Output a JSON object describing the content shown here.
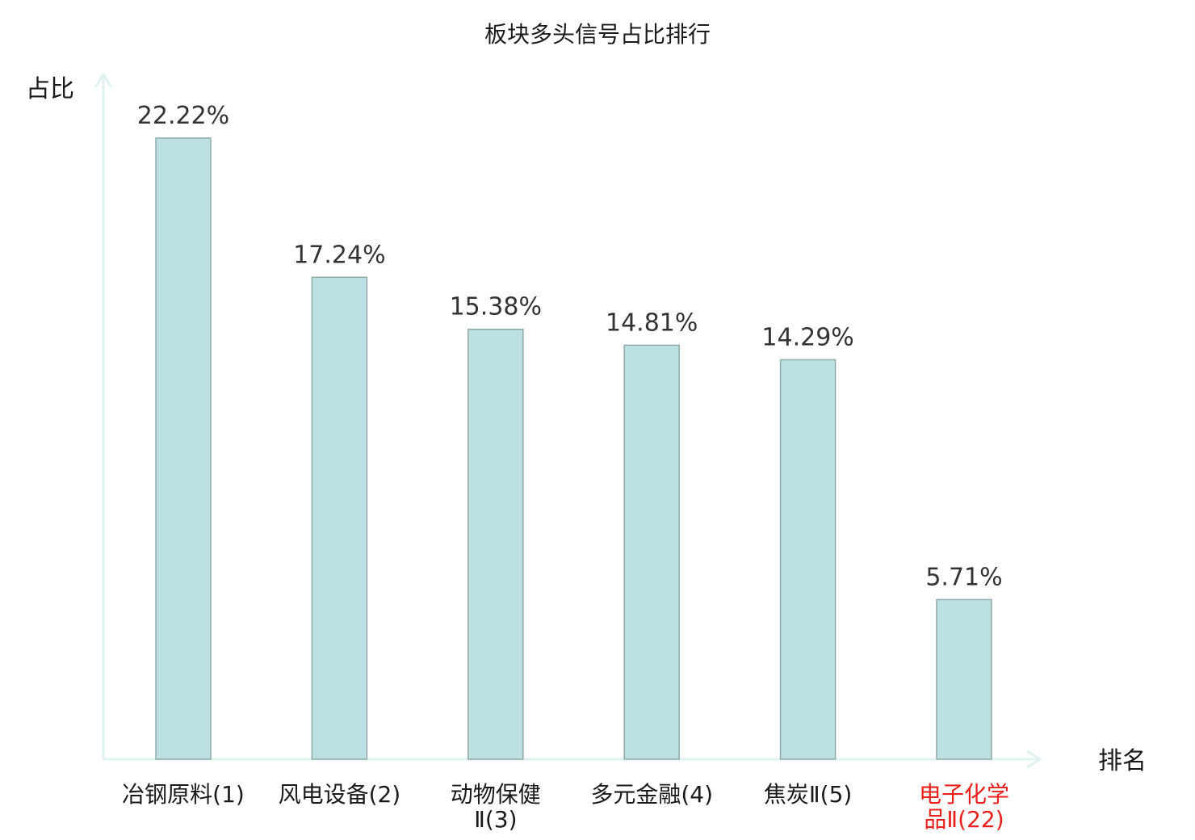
{
  "chart_data": {
    "type": "bar",
    "title": "板块多头信号占比排行",
    "ylabel": "占比",
    "xlabel": "排名",
    "ylim": [
      0,
      24.5
    ],
    "categories": [
      [
        "冶钢原料(1)"
      ],
      [
        "风电设备(2)"
      ],
      [
        "动物保健",
        "Ⅱ(3)"
      ],
      [
        "多元金融(4)"
      ],
      [
        "焦炭Ⅱ(5)"
      ],
      [
        "电子化学",
        "品Ⅱ(22)"
      ]
    ],
    "values": [
      22.22,
      17.24,
      15.38,
      14.81,
      14.29,
      5.71
    ],
    "value_labels": [
      "22.22%",
      "17.24%",
      "15.38%",
      "14.81%",
      "14.29%",
      "5.71%"
    ],
    "highlight_index": 5,
    "grid": false,
    "colors": {
      "bar_fill": "#bde0e3",
      "bar_stroke": "#8fa9ab",
      "axis": "#dff2f0",
      "label_normal": "#1a1a1a",
      "label_highlight": "#e8201c"
    }
  }
}
